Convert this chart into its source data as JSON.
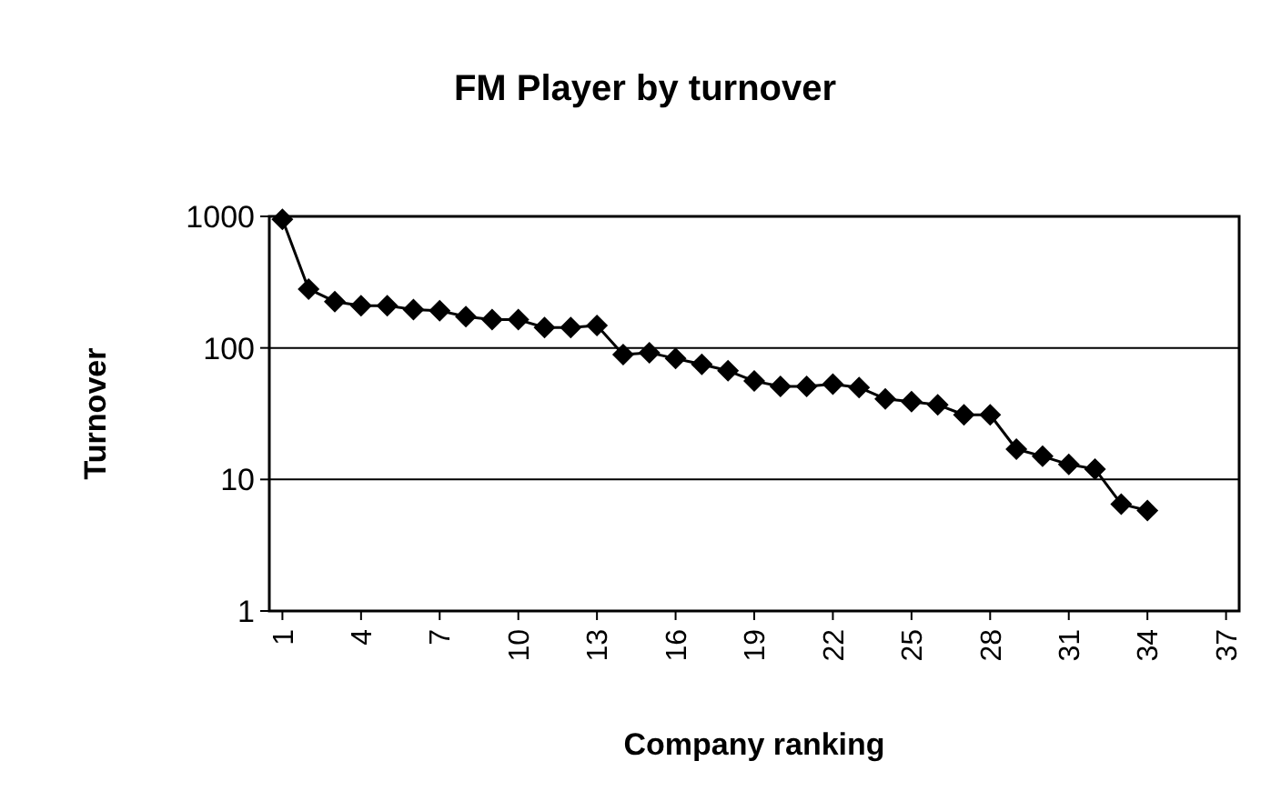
{
  "chart_data": {
    "type": "line",
    "title": "FM Player by turnover",
    "xlabel": "Company ranking",
    "ylabel": "Turnover",
    "x": [
      1,
      2,
      3,
      4,
      5,
      6,
      7,
      8,
      9,
      10,
      11,
      12,
      13,
      14,
      15,
      16,
      17,
      18,
      19,
      20,
      21,
      22,
      23,
      24,
      25,
      26,
      27,
      28,
      29,
      30,
      31,
      32,
      33,
      34
    ],
    "series": [
      {
        "color": "#000000",
        "values": [
          950,
          280,
          225,
          209,
          209,
          196,
          192,
          173,
          164,
          164,
          143,
          143,
          148,
          89,
          92,
          83,
          75,
          67,
          56,
          51,
          51,
          53,
          50,
          41,
          39,
          37,
          31,
          31,
          17,
          15,
          13,
          12,
          6.5,
          5.8
        ]
      }
    ],
    "xlim": [
      0.5,
      37.5
    ],
    "xticks": [
      1,
      4,
      7,
      10,
      13,
      16,
      19,
      22,
      25,
      28,
      31,
      34,
      37
    ],
    "ylim": [
      1,
      1000
    ],
    "yticks": [
      1,
      10,
      100,
      1000
    ],
    "log": true,
    "grid": "y",
    "marker": "diamond",
    "line_style": "solid"
  }
}
